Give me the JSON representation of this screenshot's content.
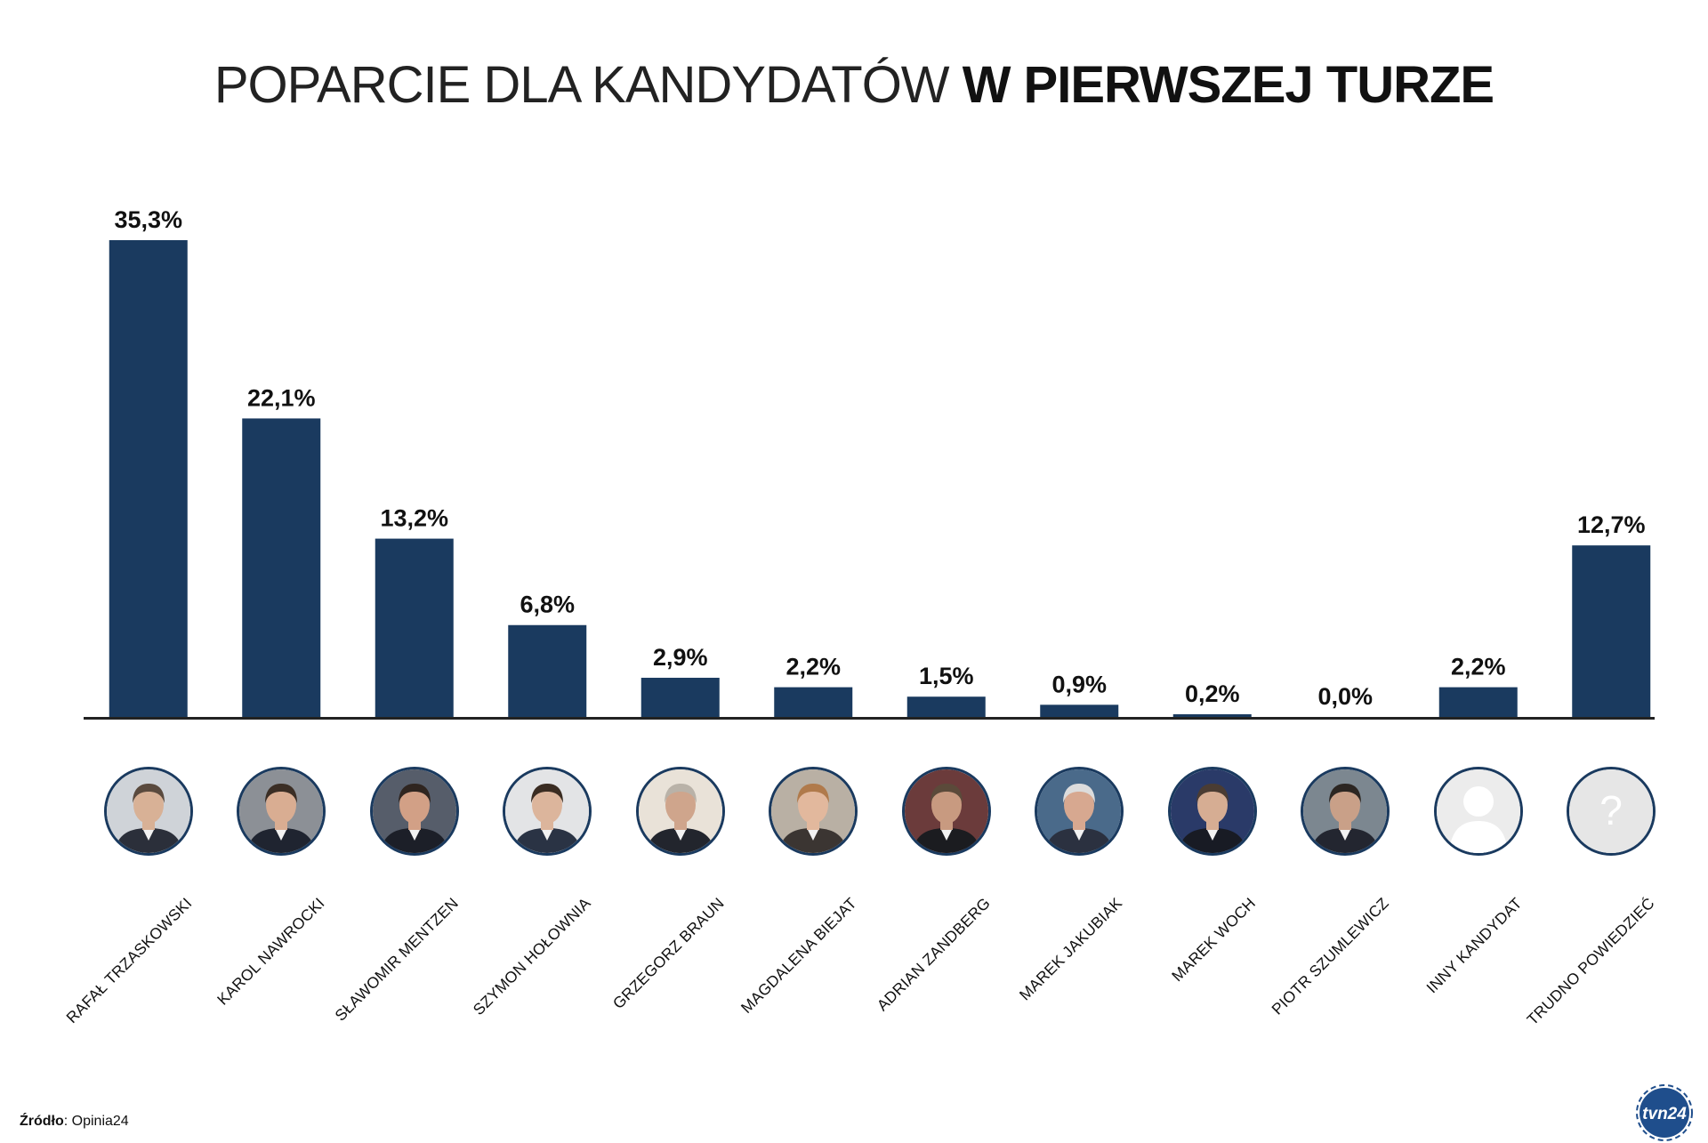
{
  "title": {
    "light": "POPARCIE DLA KANDYDATÓW",
    "bold": "W PIERWSZEJ TURZE"
  },
  "chart_data": {
    "type": "bar",
    "title": "POPARCIE DLA KANDYDATÓW W PIERWSZEJ TURZE",
    "xlabel": "",
    "ylabel": "",
    "ylim": [
      0,
      35.3
    ],
    "categories": [
      "RAFAŁ TRZASKOWSKI",
      "KAROL NAWROCKI",
      "SŁAWOMIR MENTZEN",
      "SZYMON HOŁOWNIA",
      "GRZEGORZ BRAUN",
      "MAGDALENA BIEJAT",
      "ADRIAN ZANDBERG",
      "MAREK JAKUBIAK",
      "MAREK WOCH",
      "PIOTR SZUMLEWICZ",
      "INNY KANDYDAT",
      "TRUDNO POWIEDZIEĆ"
    ],
    "values": [
      35.3,
      22.1,
      13.2,
      6.8,
      2.9,
      2.2,
      1.5,
      0.9,
      0.2,
      0.0,
      2.2,
      12.7
    ],
    "value_labels": [
      "35,3%",
      "22,1%",
      "13,2%",
      "6,8%",
      "2,9%",
      "2,2%",
      "1,5%",
      "0,9%",
      "0,2%",
      "0,0%",
      "2,2%",
      "12,7%"
    ],
    "grid": false,
    "legend": "none"
  },
  "avatars": [
    {
      "kind": "photo",
      "skin": "#d8b196",
      "hair": "#5a4a3e",
      "bg": "#cfd3d8",
      "suit": "#2b2f3a"
    },
    {
      "kind": "photo",
      "skin": "#d9ad92",
      "hair": "#3b2e25",
      "bg": "#8c9096",
      "suit": "#1f2430"
    },
    {
      "kind": "photo",
      "skin": "#d2a086",
      "hair": "#2f2520",
      "bg": "#565d6a",
      "suit": "#1c1f28"
    },
    {
      "kind": "photo",
      "skin": "#dcb59c",
      "hair": "#3a2c22",
      "bg": "#e3e4e6",
      "suit": "#2a3344"
    },
    {
      "kind": "photo",
      "skin": "#cfa58c",
      "hair": "#b9b2a8",
      "bg": "#e9e2d8",
      "suit": "#22252d"
    },
    {
      "kind": "photo",
      "skin": "#e2b89d",
      "hair": "#b07a4b",
      "bg": "#b9b0a4",
      "suit": "#3b3532"
    },
    {
      "kind": "photo",
      "skin": "#c89a80",
      "hair": "#5b4a3a",
      "bg": "#6b3b3b",
      "suit": "#1b1c20"
    },
    {
      "kind": "photo",
      "skin": "#d7a890",
      "hair": "#dcdcdc",
      "bg": "#4a6a8a",
      "suit": "#2b3140"
    },
    {
      "kind": "photo",
      "skin": "#d6ad93",
      "hair": "#4a3c33",
      "bg": "#2a3a68",
      "suit": "#181b24"
    },
    {
      "kind": "photo",
      "skin": "#c9a088",
      "hair": "#2c2622",
      "bg": "#7c8790",
      "suit": "#232630"
    },
    {
      "kind": "unknown-person"
    },
    {
      "kind": "question-mark",
      "glyph": "?"
    }
  ],
  "source": {
    "label": "Źródło",
    "value": ": Opinia24"
  },
  "logo": {
    "text": "tvn24"
  },
  "colors": {
    "bar": "#1a3a5f",
    "axis": "#222222",
    "avatar_border": "#1a3a5f",
    "placeholder": "#e8e8e8"
  }
}
